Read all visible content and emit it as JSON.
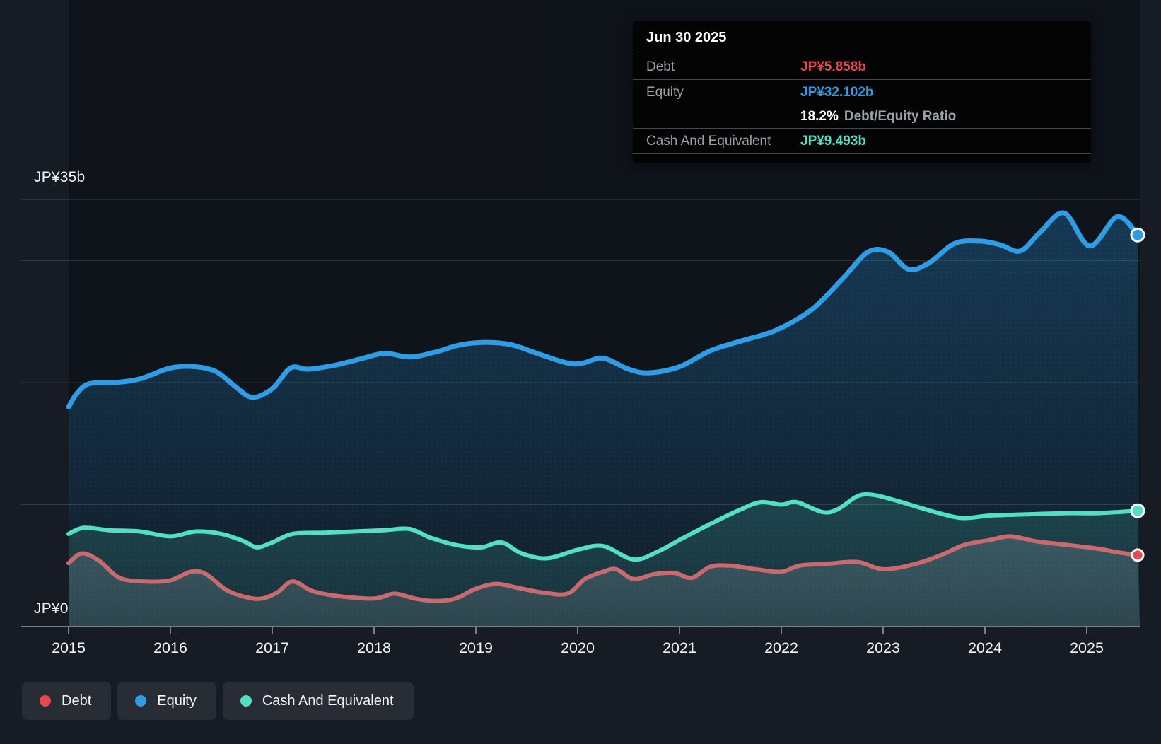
{
  "tooltip": {
    "date": "Jun 30 2025",
    "debt_label": "Debt",
    "debt_value": "JP¥5.858b",
    "equity_label": "Equity",
    "equity_value": "JP¥32.102b",
    "ratio_value": "18.2%",
    "ratio_suffix": "Debt/Equity Ratio",
    "cash_label": "Cash And Equivalent",
    "cash_value": "JP¥9.493b"
  },
  "legend": {
    "items": [
      {
        "label": "Debt",
        "color": "#e5484d"
      },
      {
        "label": "Equity",
        "color": "#2e9de6"
      },
      {
        "label": "Cash And Equivalent",
        "color": "#53e0c2"
      }
    ]
  },
  "chart_data": {
    "type": "area",
    "title": "",
    "y_unit": "JP¥ billions",
    "ylim": [
      0,
      35
    ],
    "y_gridlines_b": [
      35,
      30,
      20,
      10
    ],
    "y_axis_labels": {
      "top": "JP¥35b",
      "zero": "JP¥0"
    },
    "x_ticks": [
      2015,
      2016,
      2017,
      2018,
      2019,
      2020,
      2021,
      2022,
      2023,
      2024,
      2025
    ],
    "x_range_years": [
      2015.0,
      2025.5
    ],
    "grid": true,
    "legend_position": "bottom-left",
    "background": "#161b24",
    "last_point_date": "Jun 30 2025",
    "series": [
      {
        "name": "Equity",
        "line_color": "#2e9de6",
        "fill_color": "#2494df",
        "points": [
          [
            2015.0,
            18.0
          ],
          [
            2015.08,
            19.1
          ],
          [
            2015.2,
            19.9
          ],
          [
            2015.45,
            20.0
          ],
          [
            2015.7,
            20.3
          ],
          [
            2016.0,
            21.2
          ],
          [
            2016.25,
            21.3
          ],
          [
            2016.45,
            20.9
          ],
          [
            2016.62,
            19.8
          ],
          [
            2016.8,
            18.8
          ],
          [
            2017.0,
            19.5
          ],
          [
            2017.18,
            21.2
          ],
          [
            2017.35,
            21.1
          ],
          [
            2017.6,
            21.4
          ],
          [
            2017.85,
            21.9
          ],
          [
            2018.1,
            22.4
          ],
          [
            2018.35,
            22.1
          ],
          [
            2018.6,
            22.5
          ],
          [
            2018.85,
            23.1
          ],
          [
            2019.1,
            23.3
          ],
          [
            2019.35,
            23.1
          ],
          [
            2019.6,
            22.4
          ],
          [
            2019.9,
            21.6
          ],
          [
            2020.05,
            21.6
          ],
          [
            2020.25,
            22.0
          ],
          [
            2020.5,
            21.1
          ],
          [
            2020.7,
            20.8
          ],
          [
            2021.0,
            21.3
          ],
          [
            2021.3,
            22.6
          ],
          [
            2021.6,
            23.4
          ],
          [
            2021.95,
            24.3
          ],
          [
            2022.3,
            26.0
          ],
          [
            2022.6,
            28.5
          ],
          [
            2022.85,
            30.7
          ],
          [
            2023.05,
            30.7
          ],
          [
            2023.25,
            29.3
          ],
          [
            2023.45,
            29.8
          ],
          [
            2023.7,
            31.4
          ],
          [
            2023.95,
            31.6
          ],
          [
            2024.15,
            31.3
          ],
          [
            2024.35,
            30.8
          ],
          [
            2024.55,
            32.4
          ],
          [
            2024.78,
            33.9
          ],
          [
            2025.03,
            31.2
          ],
          [
            2025.3,
            33.6
          ],
          [
            2025.5,
            32.102
          ]
        ]
      },
      {
        "name": "Cash And Equivalent",
        "line_color": "#53e0c2",
        "fill_color": "#53e0c2",
        "points": [
          [
            2015.0,
            7.6
          ],
          [
            2015.15,
            8.1
          ],
          [
            2015.4,
            7.9
          ],
          [
            2015.7,
            7.8
          ],
          [
            2016.0,
            7.4
          ],
          [
            2016.25,
            7.8
          ],
          [
            2016.5,
            7.6
          ],
          [
            2016.72,
            7.0
          ],
          [
            2016.85,
            6.5
          ],
          [
            2017.0,
            6.9
          ],
          [
            2017.2,
            7.6
          ],
          [
            2017.5,
            7.7
          ],
          [
            2017.8,
            7.8
          ],
          [
            2018.1,
            7.9
          ],
          [
            2018.35,
            8.0
          ],
          [
            2018.55,
            7.3
          ],
          [
            2018.8,
            6.7
          ],
          [
            2019.05,
            6.5
          ],
          [
            2019.25,
            6.9
          ],
          [
            2019.45,
            6.0
          ],
          [
            2019.7,
            5.6
          ],
          [
            2020.0,
            6.3
          ],
          [
            2020.25,
            6.6
          ],
          [
            2020.55,
            5.5
          ],
          [
            2020.8,
            6.2
          ],
          [
            2021.0,
            7.1
          ],
          [
            2021.3,
            8.4
          ],
          [
            2021.6,
            9.6
          ],
          [
            2021.8,
            10.2
          ],
          [
            2022.0,
            10.0
          ],
          [
            2022.15,
            10.2
          ],
          [
            2022.4,
            9.4
          ],
          [
            2022.55,
            9.6
          ],
          [
            2022.75,
            10.7
          ],
          [
            2022.9,
            10.8
          ],
          [
            2023.1,
            10.4
          ],
          [
            2023.3,
            9.9
          ],
          [
            2023.55,
            9.3
          ],
          [
            2023.78,
            8.9
          ],
          [
            2024.05,
            9.1
          ],
          [
            2024.4,
            9.2
          ],
          [
            2024.8,
            9.3
          ],
          [
            2025.1,
            9.3
          ],
          [
            2025.5,
            9.493
          ]
        ]
      },
      {
        "name": "Debt",
        "line_color": "#c96b6e",
        "fill_color": "#c3cdd9",
        "points": [
          [
            2015.0,
            5.2
          ],
          [
            2015.13,
            6.0
          ],
          [
            2015.3,
            5.4
          ],
          [
            2015.5,
            4.0
          ],
          [
            2015.75,
            3.7
          ],
          [
            2016.0,
            3.8
          ],
          [
            2016.2,
            4.5
          ],
          [
            2016.35,
            4.3
          ],
          [
            2016.55,
            3.0
          ],
          [
            2016.75,
            2.4
          ],
          [
            2016.9,
            2.3
          ],
          [
            2017.05,
            2.8
          ],
          [
            2017.2,
            3.7
          ],
          [
            2017.4,
            2.9
          ],
          [
            2017.65,
            2.5
          ],
          [
            2018.0,
            2.3
          ],
          [
            2018.2,
            2.7
          ],
          [
            2018.4,
            2.3
          ],
          [
            2018.6,
            2.1
          ],
          [
            2018.8,
            2.3
          ],
          [
            2019.0,
            3.1
          ],
          [
            2019.2,
            3.5
          ],
          [
            2019.4,
            3.2
          ],
          [
            2019.65,
            2.8
          ],
          [
            2019.9,
            2.7
          ],
          [
            2020.07,
            3.9
          ],
          [
            2020.25,
            4.5
          ],
          [
            2020.38,
            4.7
          ],
          [
            2020.55,
            3.9
          ],
          [
            2020.75,
            4.3
          ],
          [
            2020.95,
            4.4
          ],
          [
            2021.12,
            4.0
          ],
          [
            2021.3,
            4.9
          ],
          [
            2021.5,
            5.0
          ],
          [
            2021.75,
            4.7
          ],
          [
            2022.0,
            4.5
          ],
          [
            2022.18,
            5.0
          ],
          [
            2022.45,
            5.15
          ],
          [
            2022.75,
            5.3
          ],
          [
            2023.0,
            4.7
          ],
          [
            2023.3,
            5.1
          ],
          [
            2023.55,
            5.8
          ],
          [
            2023.8,
            6.7
          ],
          [
            2024.05,
            7.1
          ],
          [
            2024.25,
            7.4
          ],
          [
            2024.5,
            7.0
          ],
          [
            2024.8,
            6.7
          ],
          [
            2025.1,
            6.4
          ],
          [
            2025.3,
            6.1
          ],
          [
            2025.5,
            5.858
          ]
        ]
      }
    ]
  }
}
